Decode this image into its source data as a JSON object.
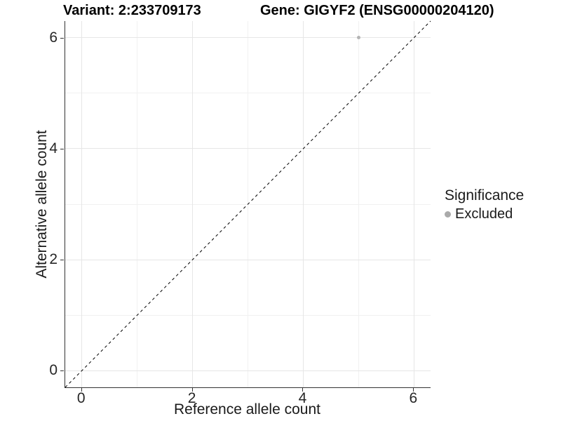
{
  "chart_data": {
    "type": "scatter",
    "title_left": "Variant: 2:233709173",
    "title_right": "Gene: GIGYF2 (ENSG00000204120)",
    "xlabel": "Reference allele count",
    "ylabel": "Alternative allele count",
    "xlim": [
      -0.3,
      6.3
    ],
    "ylim": [
      -0.3,
      6.3
    ],
    "xticks": [
      0,
      2,
      4,
      6
    ],
    "yticks": [
      0,
      2,
      4,
      6
    ],
    "grid_major": [
      0,
      2,
      4,
      6
    ],
    "grid_minor": [
      1,
      3,
      5
    ],
    "grid_on": true,
    "points": [
      {
        "x": 5,
        "y": 6,
        "series": "Excluded"
      }
    ],
    "identity_line": {
      "slope": 1,
      "intercept": 0,
      "style": "dashed",
      "color": "#000000"
    },
    "legend": {
      "position": "right",
      "title": "Significance",
      "entries": [
        {
          "label": "Excluded",
          "color": "#aaaaaa"
        }
      ]
    },
    "colors": {
      "grid_major": "#e6e6e6",
      "grid_minor": "#f1f1f1",
      "axis": "#333333",
      "point_excluded": "#b4b4b4",
      "title_text": "#000000",
      "axis_text": "#262626"
    }
  }
}
